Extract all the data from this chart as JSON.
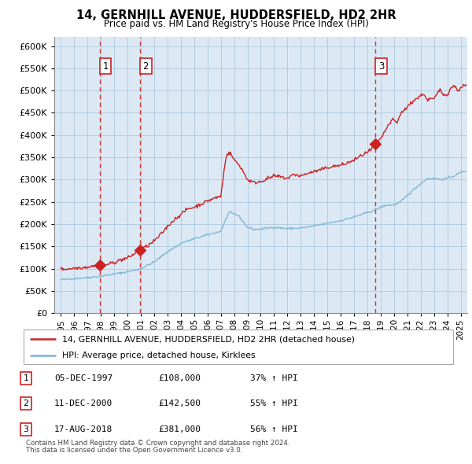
{
  "title": "14, GERNHILL AVENUE, HUDDERSFIELD, HD2 2HR",
  "subtitle": "Price paid vs. HM Land Registry's House Price Index (HPI)",
  "legend_line1": "14, GERNHILL AVENUE, HUDDERSFIELD, HD2 2HR (detached house)",
  "legend_line2": "HPI: Average price, detached house, Kirklees",
  "footnote1": "Contains HM Land Registry data © Crown copyright and database right 2024.",
  "footnote2": "This data is licensed under the Open Government Licence v3.0.",
  "transactions": [
    {
      "num": 1,
      "date": "05-DEC-1997",
      "price": 108000,
      "pct": "37%",
      "dir": "↑",
      "x": 1997.92
    },
    {
      "num": 2,
      "date": "11-DEC-2000",
      "price": 142500,
      "pct": "55%",
      "dir": "↑",
      "x": 2000.95
    },
    {
      "num": 3,
      "date": "17-AUG-2018",
      "price": 381000,
      "pct": "56%",
      "dir": "↑",
      "x": 2018.62
    }
  ],
  "hpi_color": "#7ab3d4",
  "price_color": "#cc2222",
  "background_color": "#ffffff",
  "plot_bg_color": "#ffffff",
  "shaded_region_color": "#dce9f5",
  "grid_color": "#aec8de",
  "ylim": [
    0,
    620000
  ],
  "xlim": [
    1994.5,
    2025.5
  ],
  "yticks": [
    0,
    50000,
    100000,
    150000,
    200000,
    250000,
    300000,
    350000,
    400000,
    450000,
    500000,
    550000,
    600000
  ],
  "xticks": [
    1995,
    1996,
    1997,
    1998,
    1999,
    2000,
    2001,
    2002,
    2003,
    2004,
    2005,
    2006,
    2007,
    2008,
    2009,
    2010,
    2011,
    2012,
    2013,
    2014,
    2015,
    2016,
    2017,
    2018,
    2019,
    2020,
    2021,
    2022,
    2023,
    2024,
    2025
  ],
  "hpi_anchors": [
    [
      1995.0,
      75000
    ],
    [
      1996.0,
      78000
    ],
    [
      1997.0,
      80000
    ],
    [
      1997.5,
      81500
    ],
    [
      1998.0,
      83000
    ],
    [
      1999.0,
      88000
    ],
    [
      2000.0,
      93000
    ],
    [
      2001.0,
      100000
    ],
    [
      2002.0,
      115000
    ],
    [
      2003.0,
      138000
    ],
    [
      2004.0,
      157000
    ],
    [
      2005.0,
      167000
    ],
    [
      2006.0,
      176000
    ],
    [
      2007.0,
      184000
    ],
    [
      2007.6,
      226000
    ],
    [
      2008.3,
      220000
    ],
    [
      2009.0,
      193000
    ],
    [
      2009.5,
      188000
    ],
    [
      2010.0,
      189000
    ],
    [
      2011.0,
      193000
    ],
    [
      2012.0,
      190000
    ],
    [
      2013.0,
      191000
    ],
    [
      2014.0,
      196000
    ],
    [
      2015.0,
      202000
    ],
    [
      2016.0,
      208000
    ],
    [
      2017.0,
      216000
    ],
    [
      2018.0,
      226000
    ],
    [
      2018.5,
      231000
    ],
    [
      2019.0,
      238000
    ],
    [
      2019.5,
      243000
    ],
    [
      2020.0,
      243000
    ],
    [
      2020.5,
      250000
    ],
    [
      2021.0,
      265000
    ],
    [
      2021.5,
      278000
    ],
    [
      2022.0,
      291000
    ],
    [
      2022.5,
      302000
    ],
    [
      2023.0,
      303000
    ],
    [
      2023.5,
      300000
    ],
    [
      2024.0,
      303000
    ],
    [
      2024.5,
      308000
    ],
    [
      2025.0,
      316000
    ],
    [
      2025.4,
      320000
    ]
  ],
  "price_anchors": [
    [
      1995.0,
      99000
    ],
    [
      1995.5,
      99500
    ],
    [
      1996.0,
      101000
    ],
    [
      1996.5,
      102500
    ],
    [
      1997.0,
      104000
    ],
    [
      1997.5,
      106000
    ],
    [
      1997.92,
      108000
    ],
    [
      1998.0,
      108500
    ],
    [
      1998.5,
      109500
    ],
    [
      1999.0,
      114000
    ],
    [
      1999.5,
      120000
    ],
    [
      2000.0,
      124000
    ],
    [
      2000.5,
      133000
    ],
    [
      2000.95,
      142500
    ],
    [
      2001.0,
      143000
    ],
    [
      2001.5,
      151000
    ],
    [
      2002.0,
      162000
    ],
    [
      2002.5,
      177000
    ],
    [
      2003.0,
      195000
    ],
    [
      2003.5,
      210000
    ],
    [
      2004.0,
      222000
    ],
    [
      2004.5,
      234000
    ],
    [
      2005.0,
      238000
    ],
    [
      2005.5,
      245000
    ],
    [
      2006.0,
      252000
    ],
    [
      2006.5,
      258000
    ],
    [
      2007.0,
      263000
    ],
    [
      2007.4,
      355000
    ],
    [
      2007.7,
      360000
    ],
    [
      2008.0,
      345000
    ],
    [
      2008.5,
      328000
    ],
    [
      2009.0,
      300000
    ],
    [
      2009.5,
      293000
    ],
    [
      2010.0,
      296000
    ],
    [
      2010.5,
      302000
    ],
    [
      2011.0,
      308000
    ],
    [
      2011.5,
      306000
    ],
    [
      2012.0,
      303000
    ],
    [
      2012.5,
      312000
    ],
    [
      2013.0,
      308000
    ],
    [
      2013.5,
      314000
    ],
    [
      2014.0,
      318000
    ],
    [
      2014.5,
      322000
    ],
    [
      2015.0,
      327000
    ],
    [
      2015.5,
      330000
    ],
    [
      2016.0,
      332000
    ],
    [
      2016.5,
      337000
    ],
    [
      2017.0,
      344000
    ],
    [
      2017.5,
      353000
    ],
    [
      2017.9,
      360000
    ],
    [
      2018.0,
      360000
    ],
    [
      2018.3,
      368000
    ],
    [
      2018.62,
      381000
    ],
    [
      2019.0,
      390000
    ],
    [
      2019.3,
      408000
    ],
    [
      2019.5,
      418000
    ],
    [
      2019.8,
      432000
    ],
    [
      2020.0,
      435000
    ],
    [
      2020.2,
      425000
    ],
    [
      2020.5,
      448000
    ],
    [
      2020.8,
      458000
    ],
    [
      2021.0,
      462000
    ],
    [
      2021.2,
      470000
    ],
    [
      2021.5,
      478000
    ],
    [
      2021.8,
      484000
    ],
    [
      2022.0,
      488000
    ],
    [
      2022.2,
      494000
    ],
    [
      2022.5,
      478000
    ],
    [
      2022.8,
      482000
    ],
    [
      2023.0,
      480000
    ],
    [
      2023.3,
      496000
    ],
    [
      2023.5,
      502000
    ],
    [
      2023.7,
      490000
    ],
    [
      2024.0,
      492000
    ],
    [
      2024.3,
      506000
    ],
    [
      2024.5,
      512000
    ],
    [
      2024.8,
      498000
    ],
    [
      2025.0,
      508000
    ],
    [
      2025.4,
      512000
    ]
  ]
}
